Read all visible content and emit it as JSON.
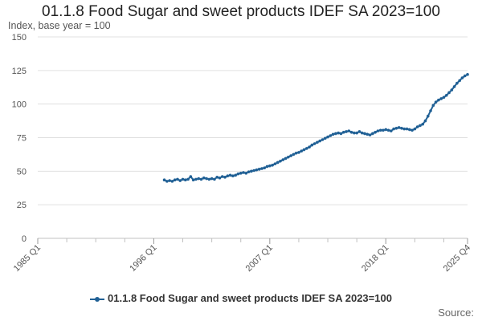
{
  "chart_data": {
    "type": "line",
    "title": "01.1.8 Food Sugar and sweet products IDEF SA 2023=100",
    "subtitle": "Index, base year = 100",
    "ylabel": "Index, base year = 100",
    "xlabel": "",
    "ylim": [
      0,
      150
    ],
    "yticks": [
      0,
      25,
      50,
      75,
      100,
      125,
      150
    ],
    "xlim": [
      1985.0,
      2025.75
    ],
    "xticks": [
      {
        "label": "1985 Q1",
        "value": 1985.0
      },
      {
        "label": "1996 Q1",
        "value": 1996.0
      },
      {
        "label": "2007 Q1",
        "value": 2007.0
      },
      {
        "label": "2018 Q1",
        "value": 2018.0
      },
      {
        "label": "2025 Q4",
        "value": 2025.75
      }
    ],
    "minor_xticks": [
      1987.75,
      1990.5,
      1993.25,
      1998.75,
      2001.5,
      2004.25,
      2009.75,
      2012.5,
      2015.25,
      2020.75,
      2023.5
    ],
    "grid": true,
    "legend": "bottom-center",
    "series": [
      {
        "name": "01.1.8 Food Sugar and sweet products IDEF SA 2023=100",
        "color": "#206095",
        "points": [
          [
            1997.0,
            43.5
          ],
          [
            1997.25,
            42.5
          ],
          [
            1997.5,
            43.0
          ],
          [
            1997.75,
            42.5
          ],
          [
            1998.0,
            43.5
          ],
          [
            1998.25,
            44.0
          ],
          [
            1998.5,
            43.0
          ],
          [
            1998.75,
            44.0
          ],
          [
            1999.0,
            43.5
          ],
          [
            1999.25,
            44.0
          ],
          [
            1999.5,
            46.0
          ],
          [
            1999.75,
            43.5
          ],
          [
            2000.0,
            44.0
          ],
          [
            2000.25,
            44.5
          ],
          [
            2000.5,
            44.0
          ],
          [
            2000.75,
            45.0
          ],
          [
            2001.0,
            44.5
          ],
          [
            2001.25,
            44.0
          ],
          [
            2001.5,
            44.5
          ],
          [
            2001.75,
            44.0
          ],
          [
            2002.0,
            45.5
          ],
          [
            2002.25,
            45.0
          ],
          [
            2002.5,
            46.0
          ],
          [
            2002.75,
            45.5
          ],
          [
            2003.0,
            46.5
          ],
          [
            2003.25,
            47.0
          ],
          [
            2003.5,
            46.5
          ],
          [
            2003.75,
            47.0
          ],
          [
            2004.0,
            48.0
          ],
          [
            2004.25,
            48.5
          ],
          [
            2004.5,
            49.0
          ],
          [
            2004.75,
            48.5
          ],
          [
            2005.0,
            49.5
          ],
          [
            2005.25,
            50.0
          ],
          [
            2005.5,
            50.5
          ],
          [
            2005.75,
            51.0
          ],
          [
            2006.0,
            51.5
          ],
          [
            2006.25,
            52.0
          ],
          [
            2006.5,
            52.5
          ],
          [
            2006.75,
            53.5
          ],
          [
            2007.0,
            54.0
          ],
          [
            2007.25,
            54.5
          ],
          [
            2007.5,
            55.5
          ],
          [
            2007.75,
            56.5
          ],
          [
            2008.0,
            57.5
          ],
          [
            2008.25,
            58.5
          ],
          [
            2008.5,
            59.5
          ],
          [
            2008.75,
            60.5
          ],
          [
            2009.0,
            61.5
          ],
          [
            2009.25,
            62.5
          ],
          [
            2009.5,
            63.5
          ],
          [
            2009.75,
            64.0
          ],
          [
            2010.0,
            65.0
          ],
          [
            2010.25,
            66.0
          ],
          [
            2010.5,
            67.0
          ],
          [
            2010.75,
            68.0
          ],
          [
            2011.0,
            69.5
          ],
          [
            2011.25,
            70.5
          ],
          [
            2011.5,
            71.5
          ],
          [
            2011.75,
            72.5
          ],
          [
            2012.0,
            73.5
          ],
          [
            2012.25,
            74.5
          ],
          [
            2012.5,
            75.5
          ],
          [
            2012.75,
            76.5
          ],
          [
            2013.0,
            77.5
          ],
          [
            2013.25,
            78.0
          ],
          [
            2013.5,
            78.5
          ],
          [
            2013.75,
            78.0
          ],
          [
            2014.0,
            79.0
          ],
          [
            2014.25,
            79.5
          ],
          [
            2014.5,
            80.0
          ],
          [
            2014.75,
            79.0
          ],
          [
            2015.0,
            78.5
          ],
          [
            2015.25,
            78.5
          ],
          [
            2015.5,
            79.5
          ],
          [
            2015.75,
            78.5
          ],
          [
            2016.0,
            78.0
          ],
          [
            2016.25,
            77.5
          ],
          [
            2016.5,
            77.0
          ],
          [
            2016.75,
            78.0
          ],
          [
            2017.0,
            79.0
          ],
          [
            2017.25,
            80.0
          ],
          [
            2017.5,
            80.5
          ],
          [
            2017.75,
            80.5
          ],
          [
            2018.0,
            81.0
          ],
          [
            2018.25,
            80.5
          ],
          [
            2018.5,
            80.0
          ],
          [
            2018.75,
            81.5
          ],
          [
            2019.0,
            82.0
          ],
          [
            2019.25,
            82.5
          ],
          [
            2019.5,
            82.0
          ],
          [
            2019.75,
            81.5
          ],
          [
            2020.0,
            81.5
          ],
          [
            2020.25,
            81.0
          ],
          [
            2020.5,
            80.5
          ],
          [
            2020.75,
            81.5
          ],
          [
            2021.0,
            83.0
          ],
          [
            2021.25,
            84.0
          ],
          [
            2021.5,
            85.0
          ],
          [
            2021.75,
            87.5
          ],
          [
            2022.0,
            91.0
          ],
          [
            2022.25,
            95.0
          ],
          [
            2022.5,
            99.0
          ],
          [
            2022.75,
            101.5
          ],
          [
            2023.0,
            103.0
          ],
          [
            2023.25,
            104.0
          ],
          [
            2023.5,
            105.0
          ],
          [
            2023.75,
            106.5
          ],
          [
            2024.0,
            108.5
          ],
          [
            2024.25,
            110.5
          ],
          [
            2024.5,
            113.0
          ],
          [
            2024.75,
            115.5
          ],
          [
            2025.0,
            117.5
          ],
          [
            2025.25,
            119.5
          ],
          [
            2025.5,
            121.0
          ],
          [
            2025.75,
            122.0
          ]
        ]
      }
    ]
  },
  "legend": {
    "label": "01.1.8 Food Sugar and sweet products IDEF SA 2023=100"
  },
  "footer": {
    "source_label": "Source:"
  },
  "colors": {
    "series": "#206095",
    "grid": "#e0e0e0",
    "axis": "#c0c0c0",
    "text": "#414042"
  }
}
